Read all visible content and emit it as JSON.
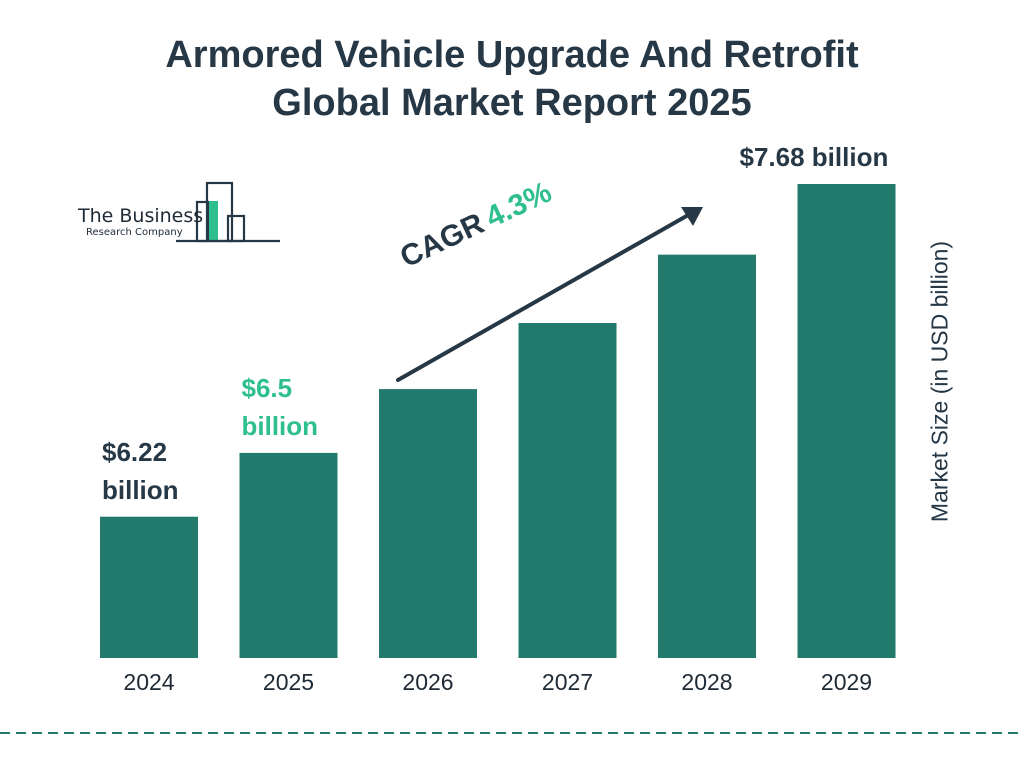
{
  "title": {
    "line1": "Armored Vehicle Upgrade And Retrofit",
    "line2": "Global Market Report 2025"
  },
  "logo": {
    "name": "The Business",
    "sub": "Research Company",
    "icon": "bar-building-logo-icon"
  },
  "cagr": {
    "label": "CAGR",
    "value": "4.3%"
  },
  "colors": {
    "bar": "#217a6b",
    "title": "#263746",
    "accent": "#2fbf8f",
    "dashed_line": "#217a6b"
  },
  "chart_data": {
    "type": "bar",
    "title": "Armored Vehicle Upgrade And Retrofit Global Market Report 2025",
    "categories": [
      "2024",
      "2025",
      "2026",
      "2027",
      "2028",
      "2029"
    ],
    "values": [
      6.22,
      6.5,
      6.78,
      7.07,
      7.37,
      7.68
    ],
    "ylabel": "Market Size (in USD billion)",
    "ylim": [
      5.6,
      7.68
    ],
    "grid": false,
    "labels": [
      {
        "category": "2024",
        "line1": "$6.22",
        "line2": "billion",
        "color": "#263746"
      },
      {
        "category": "2025",
        "line1": "$6.5",
        "line2": "billion",
        "color": "#2fbf8f"
      },
      {
        "category": "2029",
        "line1": "$7.68 billion",
        "line2": "",
        "color": "#263746"
      }
    ]
  }
}
